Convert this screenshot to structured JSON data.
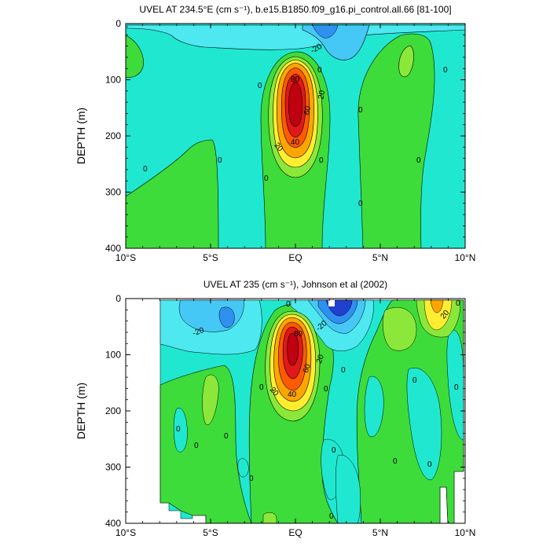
{
  "chart_data": [
    {
      "type": "heatmap",
      "subtype": "filled-contour",
      "title": "UVEL AT 234.5°E (cm s⁻¹), b.e15.B1850.f09_g16.pi_control.all.66 [81-100]",
      "ylabel": "DEPTH (m)",
      "xlabel": "",
      "x_ticks": [
        "10°S",
        "5°S",
        "EQ",
        "5°N",
        "10°N"
      ],
      "y_ticks": [
        "0",
        "100",
        "200",
        "300",
        "400"
      ],
      "xlim": [
        -10,
        10
      ],
      "ylim": [
        400,
        0
      ],
      "contour_labels": [
        "-20",
        "0",
        "20",
        "40",
        "60",
        "80"
      ],
      "core": {
        "lat": 0,
        "depth_m": 130,
        "max_cm_s": 100
      }
    },
    {
      "type": "heatmap",
      "subtype": "filled-contour",
      "title": "UVEL AT 235 (cm s⁻¹), Johnson et al (2002)",
      "ylabel": "DEPTH (m)",
      "xlabel": "",
      "x_ticks": [
        "10°S",
        "5°S",
        "EQ",
        "5°N",
        "10°N"
      ],
      "y_ticks": [
        "0",
        "100",
        "200",
        "300",
        "400"
      ],
      "xlim": [
        -10,
        10
      ],
      "ylim": [
        400,
        0
      ],
      "contour_labels": [
        "-20",
        "0",
        "20",
        "40",
        "60",
        "80"
      ],
      "core": {
        "lat": -0.2,
        "depth_m": 90,
        "max_cm_s": 100
      }
    }
  ],
  "colors": {
    "background_field": "#20e8d0",
    "green": "#3ddc3a",
    "light_green": "#8be83a",
    "yellow": "#ffee30",
    "orange": "#ffa500",
    "red_orange": "#ff5a00",
    "red": "#e01818",
    "cyan": "#4de8f0",
    "light_blue": "#45c8f5",
    "blue": "#3090f0",
    "dark_blue": "#2040d0"
  }
}
